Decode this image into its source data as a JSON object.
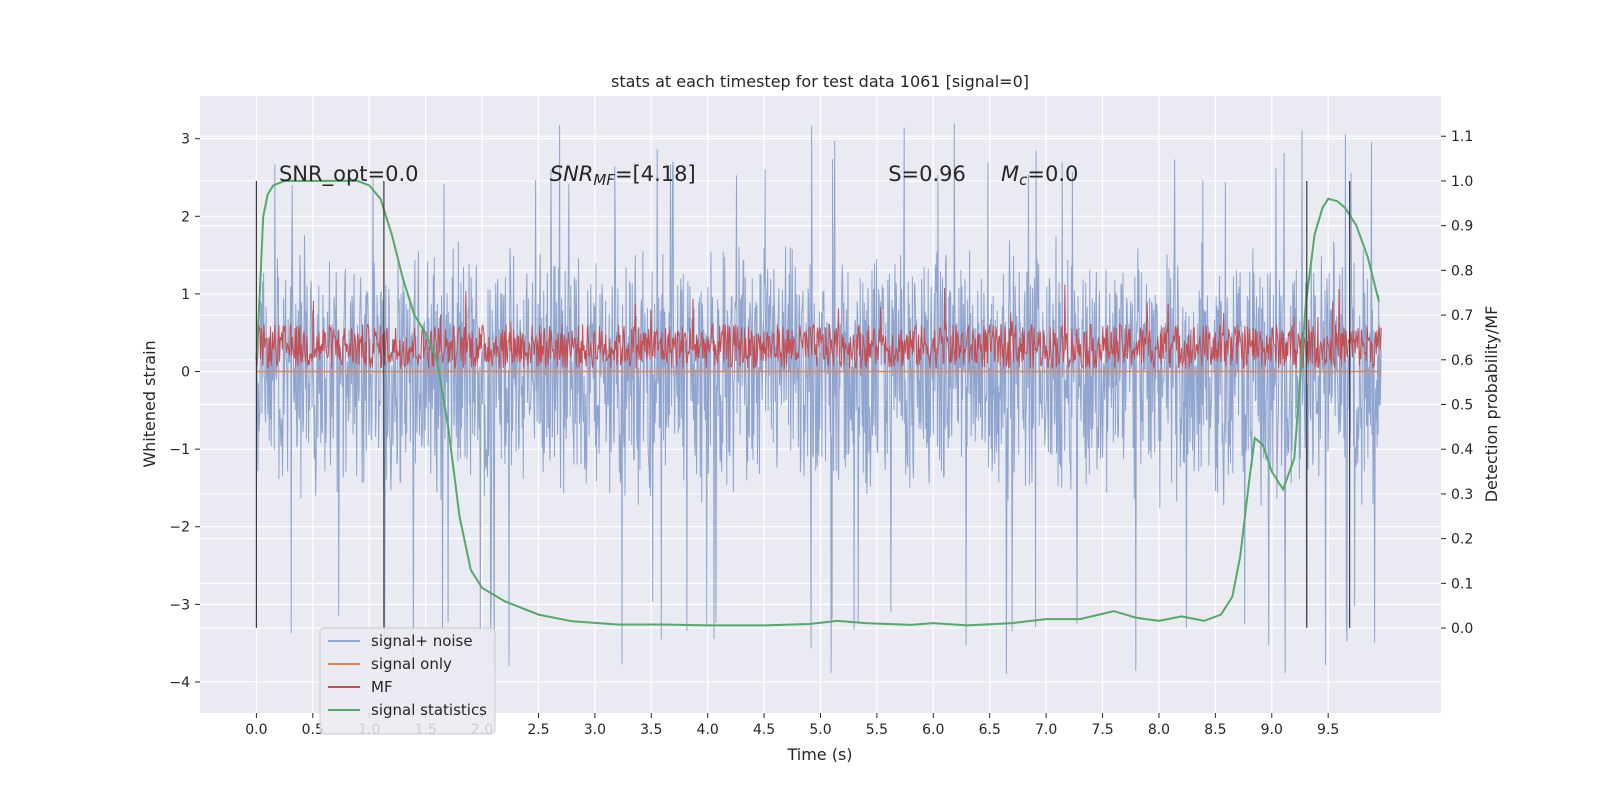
{
  "chart_data": {
    "type": "line",
    "title": "stats at each timestep for test data 1061 [signal=0]",
    "xlabel": "Time (s)",
    "ylabel": "Whitened strain",
    "y2label": "Detection probability/MF",
    "xlim": [
      -0.5,
      10.5
    ],
    "ylim": [
      -4.4,
      3.55
    ],
    "y2lim": [
      -0.19,
      1.19
    ],
    "x_ticks": [
      0.0,
      0.5,
      1.0,
      1.5,
      2.0,
      2.5,
      3.0,
      3.5,
      4.0,
      4.5,
      5.0,
      5.5,
      6.0,
      6.5,
      7.0,
      7.5,
      8.0,
      8.5,
      9.0,
      9.5
    ],
    "x_tick_labels": [
      "0.0",
      "0.5",
      "1.0",
      "1.5",
      "2.0",
      "2.5",
      "3.0",
      "3.5",
      "4.0",
      "4.5",
      "5.0",
      "5.5",
      "6.0",
      "6.5",
      "7.0",
      "7.5",
      "8.0",
      "8.5",
      "9.0",
      "9.5"
    ],
    "y_ticks": [
      3,
      2,
      1,
      0,
      -1,
      -2,
      -3,
      -4
    ],
    "y_tick_labels": [
      "3",
      "2",
      "1",
      "0",
      "−1",
      "−2",
      "−3",
      "−4"
    ],
    "y2_ticks": [
      1.1,
      1.0,
      0.9,
      0.8,
      0.7,
      0.6,
      0.5,
      0.4,
      0.3,
      0.2,
      0.1,
      0.0
    ],
    "y2_tick_labels": [
      "1.1",
      "1.0",
      "0.9",
      "0.8",
      "0.7",
      "0.6",
      "0.5",
      "0.4",
      "0.3",
      "0.2",
      "0.1",
      "0.0"
    ],
    "grid": true,
    "legend_position": "lower-left",
    "colors": {
      "background": "#eaeaf2",
      "grid": "#ffffff",
      "noise": "#8fa5cf",
      "signal_only": "#dd8452",
      "mf": "#c44e52",
      "stats": "#55a868",
      "vlines": "#3a3a3a"
    },
    "annotations": [
      {
        "id": "snr-opt",
        "text": "SNR_opt=0.0",
        "x": 0.2,
        "y2": 1.0
      },
      {
        "id": "snr-mf",
        "text": "SNR_MF=[4.18]",
        "x": 2.6,
        "y2": 1.0
      },
      {
        "id": "s-val",
        "text": "S=0.96",
        "x": 5.6,
        "y2": 1.0
      },
      {
        "id": "mc-val",
        "text": "M_c=0.0",
        "x": 6.6,
        "y2": 1.0
      }
    ],
    "vertical_lines": [
      0.0,
      1.13,
      9.31,
      9.69
    ],
    "vertical_line_range_y2": [
      0.0,
      1.0
    ],
    "series": [
      {
        "name": "signal+ noise",
        "axis": "left",
        "x_range": [
          0.0,
          9.97
        ],
        "envelope_typical": [
          -1.8,
          1.8
        ],
        "envelope_peaks": [
          -3.9,
          3.2
        ]
      },
      {
        "name": "signal only",
        "axis": "left",
        "x_range": [
          0.0,
          9.97
        ],
        "y": 0.0
      },
      {
        "name": "MF",
        "axis": "right",
        "x_range": [
          0.0,
          9.97
        ],
        "band": [
          0.58,
          0.68
        ],
        "peak": 0.77
      },
      {
        "name": "signal statistics",
        "axis": "right",
        "points": [
          [
            0.0,
            0.6
          ],
          [
            0.03,
            0.75
          ],
          [
            0.06,
            0.92
          ],
          [
            0.1,
            0.97
          ],
          [
            0.15,
            0.99
          ],
          [
            0.25,
            1.0
          ],
          [
            0.5,
            1.0
          ],
          [
            0.7,
            1.0
          ],
          [
            0.9,
            1.0
          ],
          [
            1.0,
            0.99
          ],
          [
            1.1,
            0.96
          ],
          [
            1.2,
            0.88
          ],
          [
            1.3,
            0.78
          ],
          [
            1.4,
            0.7
          ],
          [
            1.5,
            0.66
          ],
          [
            1.6,
            0.6
          ],
          [
            1.7,
            0.45
          ],
          [
            1.8,
            0.25
          ],
          [
            1.9,
            0.13
          ],
          [
            2.0,
            0.09
          ],
          [
            2.2,
            0.06
          ],
          [
            2.5,
            0.03
          ],
          [
            2.8,
            0.015
          ],
          [
            3.2,
            0.008
          ],
          [
            3.6,
            0.008
          ],
          [
            4.0,
            0.006
          ],
          [
            4.5,
            0.006
          ],
          [
            4.9,
            0.009
          ],
          [
            5.15,
            0.016
          ],
          [
            5.4,
            0.011
          ],
          [
            5.8,
            0.007
          ],
          [
            6.0,
            0.011
          ],
          [
            6.3,
            0.006
          ],
          [
            6.7,
            0.011
          ],
          [
            7.0,
            0.02
          ],
          [
            7.3,
            0.02
          ],
          [
            7.6,
            0.038
          ],
          [
            7.8,
            0.023
          ],
          [
            8.0,
            0.016
          ],
          [
            8.2,
            0.026
          ],
          [
            8.4,
            0.016
          ],
          [
            8.55,
            0.03
          ],
          [
            8.65,
            0.07
          ],
          [
            8.72,
            0.16
          ],
          [
            8.8,
            0.33
          ],
          [
            8.85,
            0.425
          ],
          [
            8.92,
            0.41
          ],
          [
            9.0,
            0.35
          ],
          [
            9.1,
            0.31
          ],
          [
            9.2,
            0.38
          ],
          [
            9.3,
            0.72
          ],
          [
            9.38,
            0.88
          ],
          [
            9.45,
            0.94
          ],
          [
            9.5,
            0.96
          ],
          [
            9.58,
            0.955
          ],
          [
            9.65,
            0.94
          ],
          [
            9.75,
            0.9
          ],
          [
            9.85,
            0.83
          ],
          [
            9.95,
            0.73
          ]
        ]
      }
    ],
    "legend": [
      {
        "label": "signal+ noise",
        "color_key": "noise"
      },
      {
        "label": "signal only",
        "color_key": "signal_only"
      },
      {
        "label": "MF",
        "color_key": "mf"
      },
      {
        "label": "signal statistics",
        "color_key": "stats"
      }
    ]
  }
}
